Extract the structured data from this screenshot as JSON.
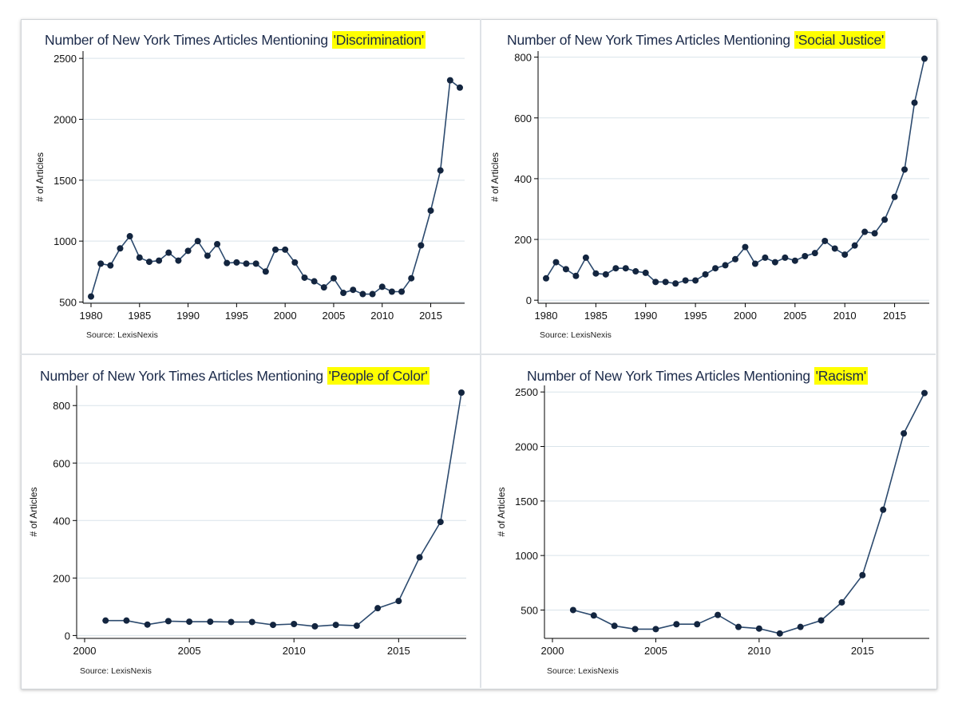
{
  "chart_data": [
    {
      "type": "line",
      "title_prefix": "Number of New York Times Articles Mentioning",
      "title_highlight": "'Discrimination'",
      "ylabel": "# of Articles",
      "xlabel": "",
      "source": "Source: LexisNexis",
      "xlim": [
        1980,
        2018
      ],
      "ylim": [
        490,
        2560
      ],
      "xticks": [
        1980,
        1985,
        1990,
        1995,
        2000,
        2005,
        2010,
        2015
      ],
      "yticks": [
        500,
        1000,
        1500,
        2000,
        2500
      ],
      "grid": true,
      "x": [
        1980,
        1981,
        1982,
        1983,
        1984,
        1985,
        1986,
        1987,
        1988,
        1989,
        1990,
        1991,
        1992,
        1993,
        1994,
        1995,
        1996,
        1997,
        1998,
        1999,
        2000,
        2001,
        2002,
        2003,
        2004,
        2005,
        2006,
        2007,
        2008,
        2009,
        2010,
        2011,
        2012,
        2013,
        2014,
        2015,
        2016,
        2017,
        2018
      ],
      "y": [
        545,
        815,
        800,
        940,
        1040,
        865,
        830,
        840,
        905,
        840,
        920,
        1000,
        880,
        975,
        820,
        825,
        815,
        815,
        750,
        930,
        930,
        825,
        700,
        670,
        620,
        695,
        575,
        600,
        565,
        565,
        625,
        585,
        585,
        695,
        965,
        1250,
        1580,
        2320,
        2260
      ]
    },
    {
      "type": "line",
      "title_prefix": "Number of New York Times Articles Mentioning",
      "title_highlight": "'Social Justice'",
      "ylabel": "# of Articles",
      "xlabel": "",
      "source": "Source: LexisNexis",
      "xlim": [
        1980,
        2018
      ],
      "ylim": [
        -10,
        820
      ],
      "xticks": [
        1980,
        1985,
        1990,
        1995,
        2000,
        2005,
        2010,
        2015
      ],
      "yticks": [
        0,
        200,
        400,
        600,
        800
      ],
      "grid": true,
      "x": [
        1980,
        1981,
        1982,
        1983,
        1984,
        1985,
        1986,
        1987,
        1988,
        1989,
        1990,
        1991,
        1992,
        1993,
        1994,
        1995,
        1996,
        1997,
        1998,
        1999,
        2000,
        2001,
        2002,
        2003,
        2004,
        2005,
        2006,
        2007,
        2008,
        2009,
        2010,
        2011,
        2012,
        2013,
        2014,
        2015,
        2016,
        2017,
        2018
      ],
      "y": [
        72,
        125,
        102,
        80,
        140,
        88,
        85,
        105,
        105,
        95,
        90,
        60,
        60,
        55,
        65,
        65,
        85,
        105,
        115,
        135,
        175,
        120,
        140,
        125,
        140,
        130,
        145,
        155,
        195,
        170,
        150,
        180,
        225,
        220,
        265,
        340,
        430,
        650,
        795
      ]
    },
    {
      "type": "line",
      "title_prefix": "Number of New York Times Articles Mentioning",
      "title_highlight": "'People of Color'",
      "ylabel": "# of Articles",
      "xlabel": "",
      "source": "Source: LexisNexis",
      "xlim": [
        2000,
        2018
      ],
      "ylim": [
        -10,
        870
      ],
      "xticks": [
        2000,
        2005,
        2010,
        2015
      ],
      "yticks": [
        0,
        200,
        400,
        600,
        800
      ],
      "grid": true,
      "x": [
        2001,
        2002,
        2003,
        2004,
        2005,
        2006,
        2007,
        2008,
        2009,
        2010,
        2011,
        2012,
        2013,
        2014,
        2015,
        2016,
        2017,
        2018
      ],
      "y": [
        52,
        52,
        38,
        50,
        48,
        48,
        47,
        47,
        37,
        40,
        32,
        37,
        34,
        95,
        120,
        272,
        395,
        845
      ]
    },
    {
      "type": "line",
      "title_prefix": "Number of New York Times Articles Mentioning",
      "title_highlight": "'Racism'",
      "ylabel": "# of Articles",
      "xlabel": "",
      "source": "Source: LexisNexis",
      "xlim": [
        2000,
        2018
      ],
      "ylim": [
        240,
        2560
      ],
      "xticks": [
        2000,
        2005,
        2010,
        2015
      ],
      "yticks": [
        500,
        1000,
        1500,
        2000,
        2500
      ],
      "grid": true,
      "x": [
        2001,
        2002,
        2003,
        2004,
        2005,
        2006,
        2007,
        2008,
        2009,
        2010,
        2011,
        2012,
        2013,
        2014,
        2015,
        2016,
        2017,
        2018
      ],
      "y": [
        500,
        450,
        355,
        325,
        325,
        370,
        370,
        455,
        345,
        330,
        285,
        345,
        405,
        570,
        820,
        1420,
        2120,
        2490
      ]
    }
  ],
  "colors": {
    "line": "#2c4a6e",
    "marker": "#13253f",
    "axis": "#000000",
    "grid": "#d9e3ea",
    "title": "#1b2a4a",
    "highlight": "#ffff00"
  }
}
